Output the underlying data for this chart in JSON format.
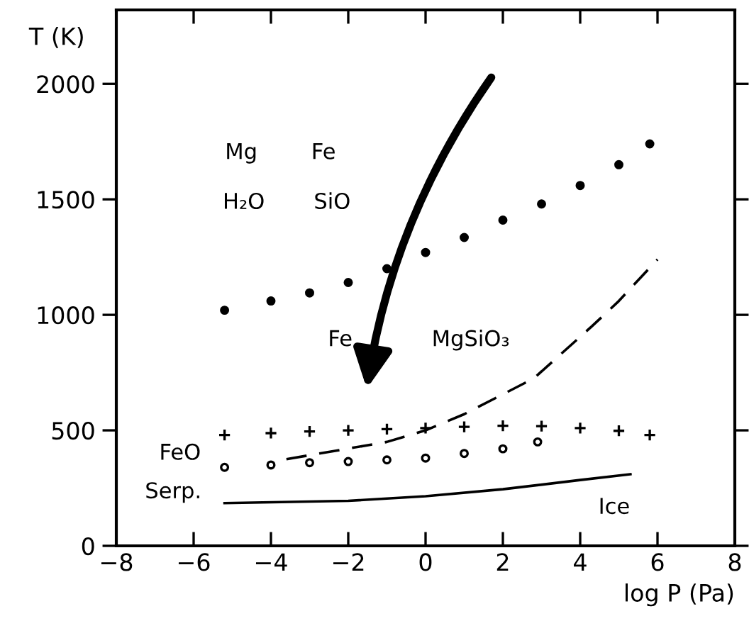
{
  "chart_data": {
    "type": "line",
    "xlabel": "log P (Pa)",
    "ylabel": "T (K)",
    "xlim": [
      -8,
      8
    ],
    "xticks": [
      {
        "value": -8,
        "label": "−8"
      },
      {
        "value": -6,
        "label": "−6"
      },
      {
        "value": -4,
        "label": "−4"
      },
      {
        "value": -2,
        "label": "−2"
      },
      0,
      2,
      4,
      6,
      8
    ],
    "ylim": [
      0,
      2320
    ],
    "yticks": [
      0,
      500,
      1000,
      1500,
      2000
    ],
    "grid": false,
    "legend": false,
    "series": [
      {
        "type": "scatter",
        "marker": "circle",
        "color": "#000000",
        "x": [
          -5.2,
          -4,
          -3,
          -2,
          -1,
          0,
          1,
          2,
          3,
          4,
          5,
          5.8
        ],
        "values": [
          1020,
          1060,
          1095,
          1140,
          1200,
          1270,
          1335,
          1410,
          1480,
          1560,
          1650,
          1740
        ]
      },
      {
        "type": "scatter",
        "marker": "cross",
        "color": "#000000",
        "x": [
          -5.2,
          -4,
          -3,
          -2,
          -1,
          0,
          1,
          2,
          3,
          4,
          5,
          5.8
        ],
        "values": [
          480,
          488,
          495,
          500,
          505,
          510,
          515,
          520,
          518,
          510,
          498,
          480
        ]
      },
      {
        "type": "scatter",
        "marker": "open circle",
        "color": "#000000",
        "x": [
          -5.2,
          -4,
          -3,
          -2,
          -1,
          0,
          1,
          2,
          2.9
        ],
        "values": [
          340,
          350,
          360,
          365,
          372,
          380,
          400,
          420,
          450
        ]
      },
      {
        "line_style": "dashed",
        "color": "#000000",
        "x": [
          -3.6,
          -1,
          0,
          1,
          2.8,
          4.3,
          5,
          6
        ],
        "values": [
          375,
          450,
          500,
          570,
          725,
          950,
          1060,
          1240
        ]
      },
      {
        "line_style": "solid",
        "color": "#000000",
        "x": [
          -5.2,
          -2,
          0,
          2,
          4,
          5.3
        ],
        "values": [
          185,
          195,
          215,
          245,
          285,
          310
        ]
      }
    ],
    "annotations": [
      "Mg",
      "Fe",
      "H₂O",
      "SiO",
      "Fe",
      "MgSiO₃",
      "FeO",
      "Serp.",
      "Ice"
    ]
  }
}
